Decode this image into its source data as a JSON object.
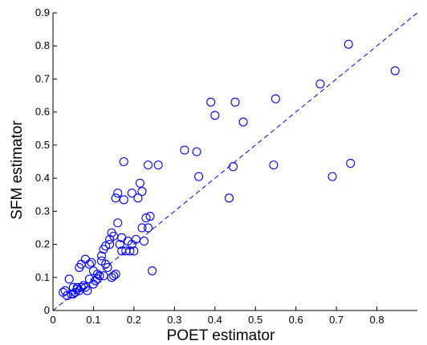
{
  "chart_data": {
    "type": "scatter",
    "xlabel": "POET estimator",
    "ylabel": "SFM estimator",
    "xlim": [
      0,
      0.9
    ],
    "ylim": [
      0,
      0.9
    ],
    "xticks": [
      0,
      0.1,
      0.2,
      0.3,
      0.4,
      0.5,
      0.6,
      0.7,
      0.8
    ],
    "xtick_labels": [
      "0",
      "0.1",
      "0.2",
      "0.3",
      "0.4",
      "0.5",
      "0.6",
      "0.7",
      "0.8"
    ],
    "yticks": [
      0,
      0.1,
      0.2,
      0.3,
      0.4,
      0.5,
      0.6,
      0.7,
      0.8,
      0.9
    ],
    "ytick_labels": [
      "0",
      "0.1",
      "0.2",
      "0.3",
      "0.4",
      "0.5",
      "0.6",
      "0.7",
      "0.8",
      "0.9"
    ],
    "grid": false,
    "marker": "open-circle",
    "marker_color": "#0000ff",
    "reference_line": {
      "style": "dashed",
      "color": "#0000ff",
      "slope": 1,
      "intercept": 0
    },
    "points": [
      [
        0.025,
        0.055
      ],
      [
        0.03,
        0.06
      ],
      [
        0.035,
        0.045
      ],
      [
        0.04,
        0.095
      ],
      [
        0.045,
        0.05
      ],
      [
        0.05,
        0.05
      ],
      [
        0.05,
        0.07
      ],
      [
        0.055,
        0.055
      ],
      [
        0.06,
        0.065
      ],
      [
        0.06,
        0.07
      ],
      [
        0.065,
        0.06
      ],
      [
        0.065,
        0.13
      ],
      [
        0.07,
        0.14
      ],
      [
        0.07,
        0.07
      ],
      [
        0.075,
        0.075
      ],
      [
        0.08,
        0.155
      ],
      [
        0.08,
        0.07
      ],
      [
        0.085,
        0.06
      ],
      [
        0.09,
        0.14
      ],
      [
        0.09,
        0.095
      ],
      [
        0.095,
        0.145
      ],
      [
        0.1,
        0.08
      ],
      [
        0.1,
        0.12
      ],
      [
        0.105,
        0.09
      ],
      [
        0.11,
        0.095
      ],
      [
        0.11,
        0.11
      ],
      [
        0.115,
        0.105
      ],
      [
        0.12,
        0.165
      ],
      [
        0.12,
        0.15
      ],
      [
        0.125,
        0.105
      ],
      [
        0.125,
        0.185
      ],
      [
        0.13,
        0.14
      ],
      [
        0.13,
        0.195
      ],
      [
        0.135,
        0.13
      ],
      [
        0.14,
        0.2
      ],
      [
        0.14,
        0.215
      ],
      [
        0.145,
        0.235
      ],
      [
        0.145,
        0.1
      ],
      [
        0.15,
        0.105
      ],
      [
        0.15,
        0.225
      ],
      [
        0.155,
        0.11
      ],
      [
        0.155,
        0.34
      ],
      [
        0.16,
        0.355
      ],
      [
        0.16,
        0.265
      ],
      [
        0.165,
        0.2
      ],
      [
        0.17,
        0.18
      ],
      [
        0.17,
        0.22
      ],
      [
        0.175,
        0.335
      ],
      [
        0.175,
        0.45
      ],
      [
        0.18,
        0.18
      ],
      [
        0.185,
        0.21
      ],
      [
        0.19,
        0.18
      ],
      [
        0.195,
        0.2
      ],
      [
        0.195,
        0.355
      ],
      [
        0.2,
        0.18
      ],
      [
        0.205,
        0.215
      ],
      [
        0.21,
        0.34
      ],
      [
        0.215,
        0.385
      ],
      [
        0.22,
        0.36
      ],
      [
        0.22,
        0.25
      ],
      [
        0.225,
        0.21
      ],
      [
        0.23,
        0.28
      ],
      [
        0.235,
        0.25
      ],
      [
        0.235,
        0.44
      ],
      [
        0.24,
        0.285
      ],
      [
        0.245,
        0.12
      ],
      [
        0.26,
        0.44
      ],
      [
        0.325,
        0.485
      ],
      [
        0.355,
        0.48
      ],
      [
        0.36,
        0.405
      ],
      [
        0.39,
        0.63
      ],
      [
        0.4,
        0.59
      ],
      [
        0.435,
        0.34
      ],
      [
        0.445,
        0.435
      ],
      [
        0.45,
        0.63
      ],
      [
        0.47,
        0.57
      ],
      [
        0.545,
        0.44
      ],
      [
        0.55,
        0.64
      ],
      [
        0.66,
        0.685
      ],
      [
        0.69,
        0.405
      ],
      [
        0.73,
        0.805
      ],
      [
        0.735,
        0.445
      ],
      [
        0.845,
        0.725
      ]
    ]
  }
}
